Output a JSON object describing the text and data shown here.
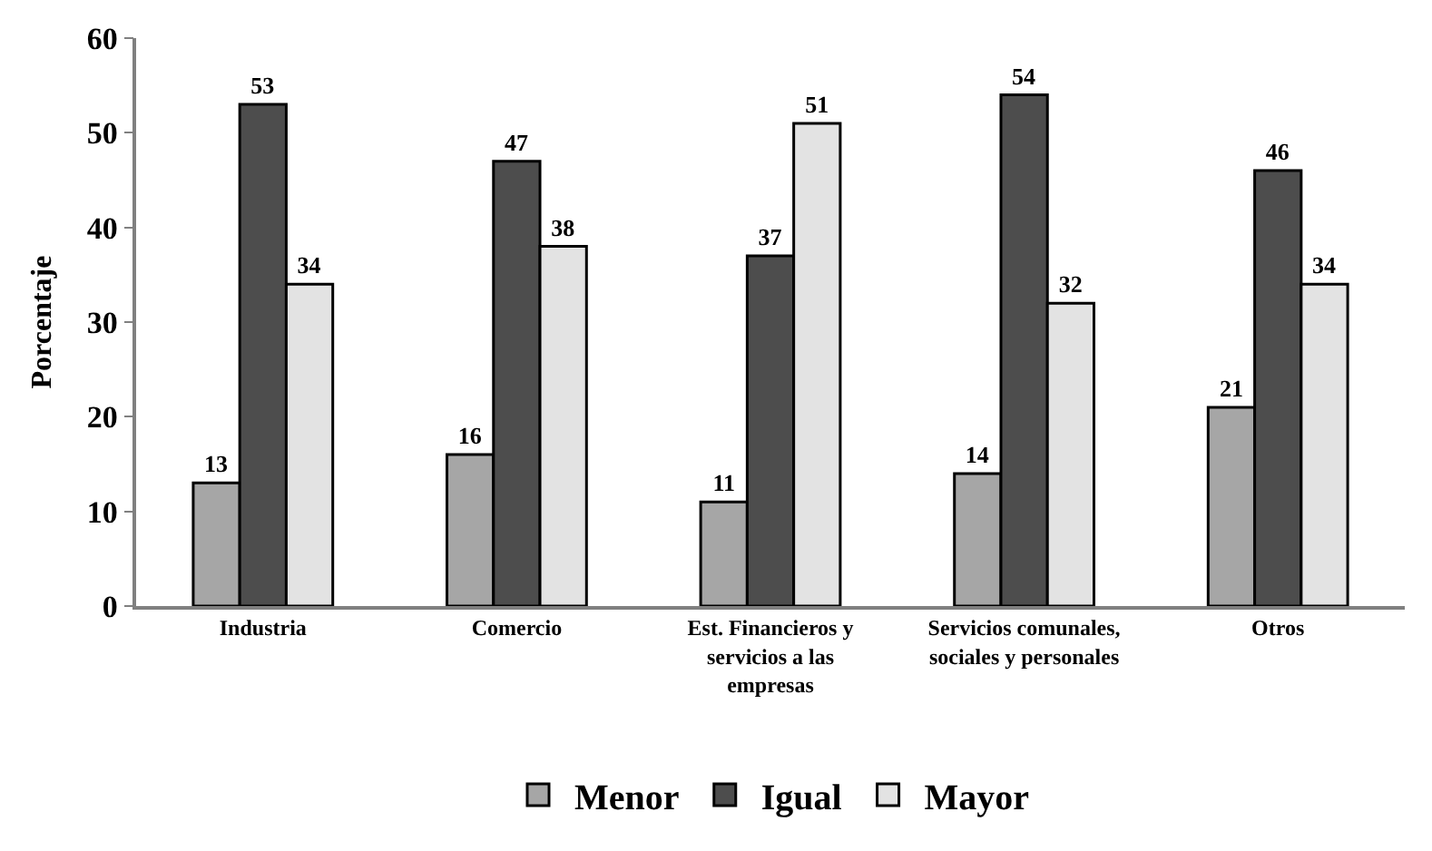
{
  "chart_data": {
    "type": "bar",
    "ylabel": "Porcentaje",
    "categories": [
      "Industria",
      "Comercio",
      "Est. Financieros y servicios a las empresas",
      "Servicios comunales, sociales y personales",
      "Otros"
    ],
    "series": [
      {
        "name": "Menor",
        "color": "#a6a6a6",
        "values": [
          13,
          16,
          11,
          14,
          21
        ]
      },
      {
        "name": "Igual",
        "color": "#4d4d4d",
        "values": [
          53,
          47,
          37,
          54,
          46
        ]
      },
      {
        "name": "Mayor",
        "color": "#e3e3e3",
        "values": [
          34,
          38,
          51,
          32,
          34
        ]
      }
    ],
    "ylim": [
      0,
      60
    ],
    "yticks": [
      0,
      10,
      20,
      30,
      40,
      50,
      60
    ],
    "data_labels": true,
    "legend": "bottom"
  }
}
